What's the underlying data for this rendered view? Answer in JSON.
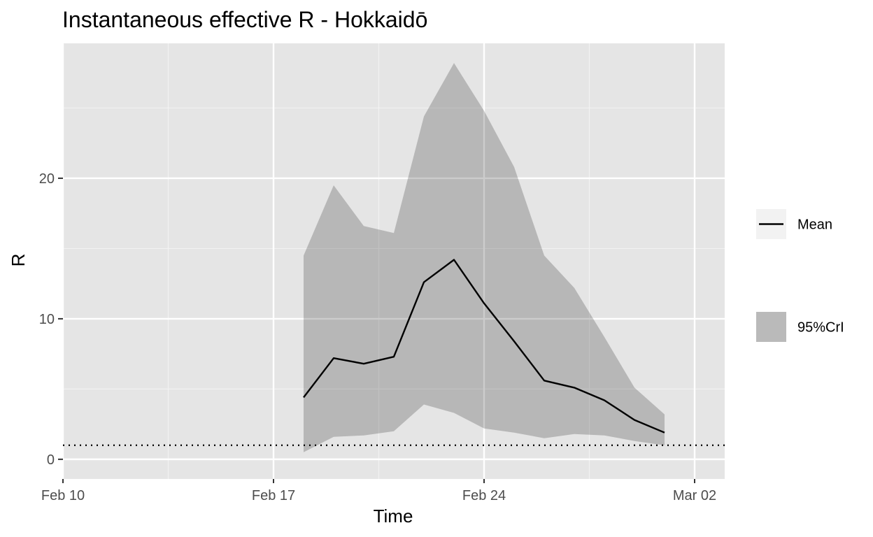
{
  "chart_data": {
    "type": "area",
    "title": "Instantaneous effective R -  Hokkaidō",
    "xlabel": "Time",
    "ylabel": "R",
    "x_ticks": [
      "Feb 10",
      "Feb 17",
      "Feb 24",
      "Mar 02"
    ],
    "y_ticks": [
      "0",
      "10",
      "20"
    ],
    "xlim": [
      "2020-02-10",
      "2020-03-03"
    ],
    "ylim": [
      -1.4,
      29.6
    ],
    "grid": true,
    "legend_position": "right",
    "reference_line": {
      "y": 1,
      "style": "dotted"
    },
    "dates": [
      "2020-02-18",
      "2020-02-19",
      "2020-02-20",
      "2020-02-21",
      "2020-02-22",
      "2020-02-23",
      "2020-02-24",
      "2020-02-25",
      "2020-02-26",
      "2020-02-27",
      "2020-02-28",
      "2020-02-29",
      "2020-03-01"
    ],
    "series": [
      {
        "name": "Mean",
        "kind": "line",
        "color": "#000000",
        "values": [
          4.4,
          7.2,
          6.8,
          7.3,
          12.6,
          14.2,
          11.1,
          8.4,
          5.6,
          5.1,
          4.2,
          2.8,
          1.9
        ]
      },
      {
        "name": "95%CrI",
        "kind": "band",
        "color": "#bababa",
        "lower": [
          0.5,
          1.6,
          1.7,
          2.0,
          3.9,
          3.3,
          2.2,
          1.9,
          1.5,
          1.8,
          1.7,
          1.3,
          1.0
        ],
        "upper": [
          14.5,
          19.5,
          16.6,
          16.1,
          24.4,
          28.2,
          24.8,
          20.8,
          14.5,
          12.2,
          8.7,
          5.1,
          3.2
        ]
      }
    ]
  }
}
